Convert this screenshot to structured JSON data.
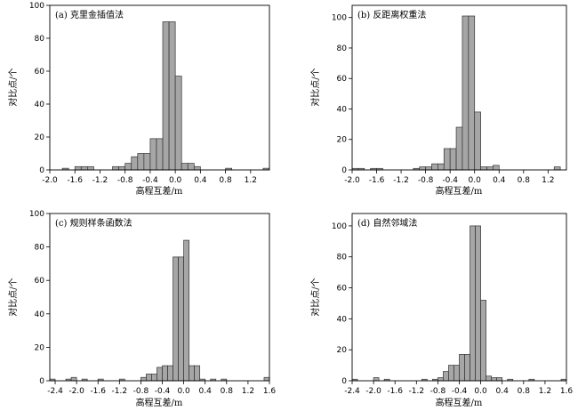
{
  "chart_data": [
    {
      "type": "bar",
      "panel_title": "(a) 克里金插值法",
      "xlabel": "高程互差/m",
      "ylabel": "对比点/个",
      "xlim": [
        -2.0,
        1.5
      ],
      "ylim": [
        0,
        100
      ],
      "bin_width": 0.1,
      "xticks": [
        "-2.0",
        "-1.6",
        "-1.2",
        "-0.8",
        "-0.4",
        "0.0",
        "0.4",
        "0.8",
        "1.2"
      ],
      "yticks": [
        "0",
        "20",
        "40",
        "60",
        "80",
        "100"
      ],
      "bins": [
        {
          "x": -1.8,
          "value": 1
        },
        {
          "x": -1.6,
          "value": 2
        },
        {
          "x": -1.5,
          "value": 2
        },
        {
          "x": -1.4,
          "value": 2
        },
        {
          "x": -1.0,
          "value": 2
        },
        {
          "x": -0.9,
          "value": 2
        },
        {
          "x": -0.8,
          "value": 4
        },
        {
          "x": -0.7,
          "value": 8
        },
        {
          "x": -0.6,
          "value": 10
        },
        {
          "x": -0.5,
          "value": 10
        },
        {
          "x": -0.4,
          "value": 19
        },
        {
          "x": -0.3,
          "value": 19
        },
        {
          "x": -0.2,
          "value": 90
        },
        {
          "x": -0.1,
          "value": 90
        },
        {
          "x": 0.0,
          "value": 57
        },
        {
          "x": 0.1,
          "value": 4
        },
        {
          "x": 0.2,
          "value": 4
        },
        {
          "x": 0.3,
          "value": 2
        },
        {
          "x": 0.8,
          "value": 1
        },
        {
          "x": 1.4,
          "value": 1
        }
      ]
    },
    {
      "type": "bar",
      "panel_title": "(b) 反距离权重法",
      "xlabel": "高程互差/m",
      "ylabel": "对比点/个",
      "xlim": [
        -2.0,
        1.5
      ],
      "ylim": [
        0,
        108
      ],
      "bin_width": 0.1,
      "xticks": [
        "-2.0",
        "-1.6",
        "-1.2",
        "-0.8",
        "-0.4",
        "0.0",
        "0.4",
        "0.8",
        "1.2"
      ],
      "yticks": [
        "0",
        "20",
        "40",
        "60",
        "80",
        "100"
      ],
      "bins": [
        {
          "x": -2.0,
          "value": 1
        },
        {
          "x": -1.9,
          "value": 1
        },
        {
          "x": -1.7,
          "value": 1
        },
        {
          "x": -1.6,
          "value": 1
        },
        {
          "x": -1.0,
          "value": 1
        },
        {
          "x": -0.9,
          "value": 2
        },
        {
          "x": -0.8,
          "value": 2
        },
        {
          "x": -0.7,
          "value": 4
        },
        {
          "x": -0.6,
          "value": 4
        },
        {
          "x": -0.5,
          "value": 14
        },
        {
          "x": -0.4,
          "value": 14
        },
        {
          "x": -0.3,
          "value": 28
        },
        {
          "x": -0.2,
          "value": 101
        },
        {
          "x": -0.1,
          "value": 101
        },
        {
          "x": 0.0,
          "value": 38
        },
        {
          "x": 0.1,
          "value": 2
        },
        {
          "x": 0.2,
          "value": 2
        },
        {
          "x": 0.3,
          "value": 3
        },
        {
          "x": 1.3,
          "value": 2
        }
      ]
    },
    {
      "type": "bar",
      "panel_title": "(c) 规则样条函数法",
      "xlabel": "高程互差/m",
      "ylabel": "对比点/个",
      "xlim": [
        -2.5,
        1.6
      ],
      "ylim": [
        0,
        100
      ],
      "bin_width": 0.1,
      "xticks": [
        "-2.4",
        "-2.0",
        "-1.6",
        "-1.2",
        "-0.8",
        "-0.4",
        "0.0",
        "0.4",
        "0.8",
        "1.2",
        "1.6"
      ],
      "yticks": [
        "0",
        "20",
        "40",
        "60",
        "80",
        "100"
      ],
      "bins": [
        {
          "x": -2.5,
          "value": 1
        },
        {
          "x": -2.2,
          "value": 1
        },
        {
          "x": -2.1,
          "value": 2
        },
        {
          "x": -1.9,
          "value": 1
        },
        {
          "x": -1.6,
          "value": 1
        },
        {
          "x": -1.2,
          "value": 1
        },
        {
          "x": -0.8,
          "value": 2
        },
        {
          "x": -0.7,
          "value": 4
        },
        {
          "x": -0.6,
          "value": 4
        },
        {
          "x": -0.5,
          "value": 8
        },
        {
          "x": -0.4,
          "value": 9
        },
        {
          "x": -0.3,
          "value": 9
        },
        {
          "x": -0.2,
          "value": 74
        },
        {
          "x": -0.1,
          "value": 74
        },
        {
          "x": 0.0,
          "value": 84
        },
        {
          "x": 0.1,
          "value": 9
        },
        {
          "x": 0.2,
          "value": 9
        },
        {
          "x": 0.3,
          "value": 1
        },
        {
          "x": 0.5,
          "value": 1
        },
        {
          "x": 0.7,
          "value": 1
        },
        {
          "x": 1.5,
          "value": 2
        }
      ]
    },
    {
      "type": "bar",
      "panel_title": "(d) 自然邻域法",
      "xlabel": "高程互差/m",
      "ylabel": "对比点/个",
      "xlim": [
        -2.4,
        1.6
      ],
      "ylim": [
        0,
        108
      ],
      "bin_width": 0.1,
      "xticks": [
        "-2.4",
        "-2.0",
        "-1.6",
        "-1.2",
        "-0.8",
        "-0.4",
        "0.0",
        "0.4",
        "0.8",
        "1.2",
        "1.6"
      ],
      "yticks": [
        "0",
        "20",
        "40",
        "60",
        "80",
        "100"
      ],
      "bins": [
        {
          "x": -2.4,
          "value": 1
        },
        {
          "x": -2.0,
          "value": 2
        },
        {
          "x": -1.8,
          "value": 1
        },
        {
          "x": -1.1,
          "value": 1
        },
        {
          "x": -0.9,
          "value": 1
        },
        {
          "x": -0.8,
          "value": 2
        },
        {
          "x": -0.7,
          "value": 6
        },
        {
          "x": -0.6,
          "value": 10
        },
        {
          "x": -0.5,
          "value": 10
        },
        {
          "x": -0.4,
          "value": 17
        },
        {
          "x": -0.3,
          "value": 17
        },
        {
          "x": -0.2,
          "value": 100
        },
        {
          "x": -0.1,
          "value": 100
        },
        {
          "x": 0.0,
          "value": 52
        },
        {
          "x": 0.1,
          "value": 3
        },
        {
          "x": 0.2,
          "value": 2
        },
        {
          "x": 0.3,
          "value": 2
        },
        {
          "x": 0.5,
          "value": 1
        },
        {
          "x": 0.9,
          "value": 1
        },
        {
          "x": 1.5,
          "value": 1
        }
      ]
    }
  ],
  "colors": {
    "bar_fill": "#a6a6a6",
    "bar_stroke": "#333333",
    "axis": "#000000"
  }
}
